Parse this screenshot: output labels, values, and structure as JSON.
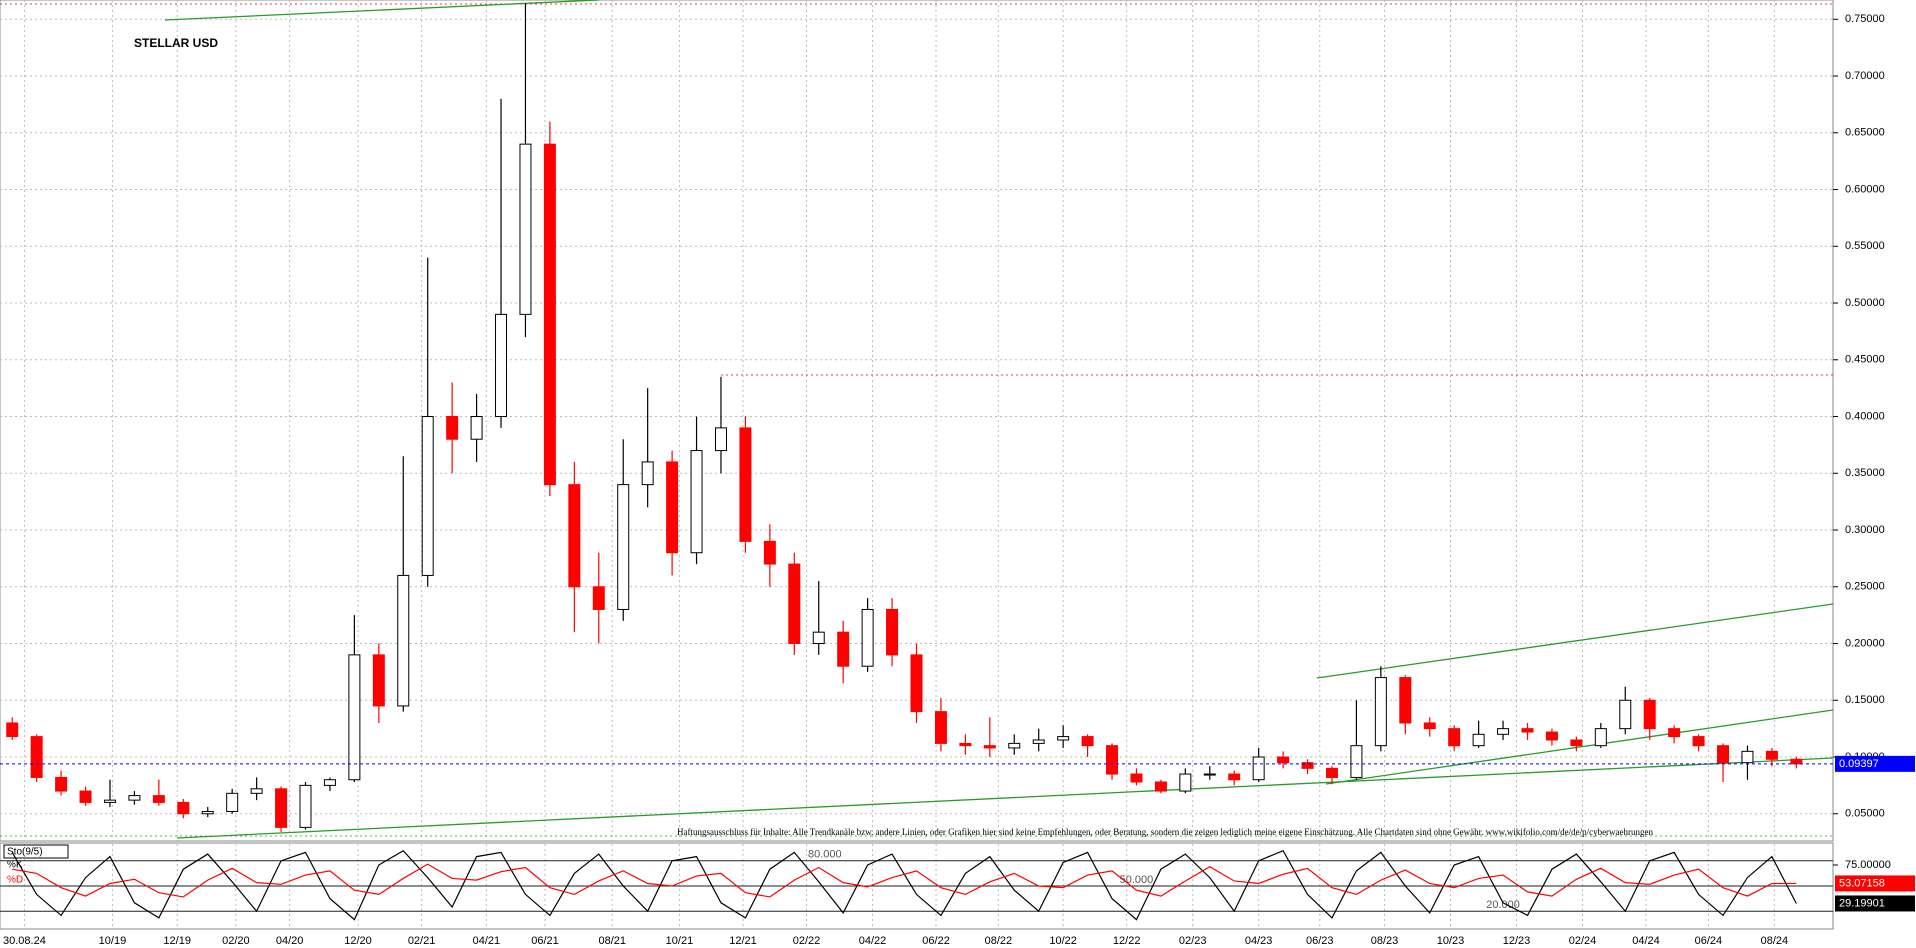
{
  "chart_data": [
    {
      "type": "candlestick",
      "title": "STELLAR USD",
      "note": "Haftungsausschluss für Inhalte: Alle Trendkanäle bzw. andere Linien, oder Grafiken hier sind keine Empfehlungen, oder Beratung, sondern die zeigen lediglich meine eigene Einschätzung. Alle Chartdaten sind ohne Gewähr. www.wikifolio.com/de/de/p/cyberwaehrungen",
      "open": [
        0.13,
        0.118,
        0.082,
        0.07,
        0.06,
        0.062,
        0.066,
        0.06,
        0.05,
        0.052,
        0.068,
        0.072,
        0.038,
        0.075,
        0.08,
        0.19,
        0.145,
        0.26,
        0.4,
        0.38,
        0.4,
        0.49,
        0.64,
        0.34,
        0.25,
        0.23,
        0.34,
        0.36,
        0.28,
        0.37,
        0.39,
        0.29,
        0.27,
        0.2,
        0.21,
        0.18,
        0.23,
        0.19,
        0.14,
        0.112,
        0.11,
        0.108,
        0.112,
        0.115,
        0.118,
        0.11,
        0.085,
        0.078,
        0.07,
        0.085,
        0.085,
        0.08,
        0.1,
        0.095,
        0.09,
        0.082,
        0.11,
        0.17,
        0.13,
        0.125,
        0.11,
        0.12,
        0.125,
        0.122,
        0.115,
        0.11,
        0.125,
        0.15,
        0.125,
        0.118,
        0.11,
        0.095,
        0.105,
        0.098
      ],
      "high": [
        0.135,
        0.12,
        0.088,
        0.074,
        0.08,
        0.07,
        0.08,
        0.063,
        0.056,
        0.072,
        0.082,
        0.074,
        0.078,
        0.082,
        0.225,
        0.2,
        0.365,
        0.54,
        0.43,
        0.42,
        0.68,
        0.764,
        0.66,
        0.36,
        0.28,
        0.38,
        0.425,
        0.37,
        0.4,
        0.435,
        0.4,
        0.305,
        0.28,
        0.255,
        0.22,
        0.24,
        0.24,
        0.2,
        0.152,
        0.12,
        0.135,
        0.12,
        0.125,
        0.128,
        0.12,
        0.112,
        0.09,
        0.08,
        0.09,
        0.092,
        0.088,
        0.108,
        0.105,
        0.098,
        0.092,
        0.15,
        0.18,
        0.172,
        0.135,
        0.128,
        0.132,
        0.132,
        0.13,
        0.125,
        0.118,
        0.13,
        0.162,
        0.152,
        0.128,
        0.12,
        0.112,
        0.11,
        0.108,
        0.1
      ],
      "low": [
        0.115,
        0.078,
        0.066,
        0.057,
        0.056,
        0.058,
        0.057,
        0.046,
        0.047,
        0.05,
        0.062,
        0.034,
        0.036,
        0.07,
        0.078,
        0.13,
        0.14,
        0.25,
        0.35,
        0.36,
        0.39,
        0.47,
        0.33,
        0.21,
        0.2,
        0.22,
        0.32,
        0.26,
        0.27,
        0.35,
        0.28,
        0.25,
        0.19,
        0.19,
        0.165,
        0.175,
        0.18,
        0.13,
        0.105,
        0.102,
        0.1,
        0.102,
        0.105,
        0.108,
        0.1,
        0.08,
        0.075,
        0.068,
        0.068,
        0.08,
        0.075,
        0.078,
        0.09,
        0.085,
        0.076,
        0.08,
        0.105,
        0.12,
        0.118,
        0.105,
        0.108,
        0.115,
        0.115,
        0.11,
        0.105,
        0.108,
        0.12,
        0.115,
        0.112,
        0.105,
        0.078,
        0.08,
        0.092,
        0.09
      ],
      "close": [
        0.118,
        0.082,
        0.07,
        0.06,
        0.062,
        0.066,
        0.06,
        0.05,
        0.052,
        0.068,
        0.072,
        0.038,
        0.075,
        0.08,
        0.19,
        0.145,
        0.26,
        0.4,
        0.38,
        0.4,
        0.49,
        0.64,
        0.34,
        0.25,
        0.23,
        0.34,
        0.36,
        0.28,
        0.37,
        0.39,
        0.29,
        0.27,
        0.2,
        0.21,
        0.18,
        0.23,
        0.19,
        0.14,
        0.112,
        0.11,
        0.108,
        0.112,
        0.115,
        0.118,
        0.11,
        0.085,
        0.078,
        0.07,
        0.085,
        0.085,
        0.08,
        0.1,
        0.095,
        0.09,
        0.082,
        0.11,
        0.17,
        0.13,
        0.125,
        0.11,
        0.12,
        0.125,
        0.122,
        0.115,
        0.11,
        0.125,
        0.15,
        0.125,
        0.118,
        0.11,
        0.095,
        0.105,
        0.098,
        0.09397
      ],
      "up_color": "#000000",
      "down_color": "#ff0000",
      "last_color": "#0000ff",
      "xlim": [
        -0.5,
        74.5
      ],
      "xticks": [
        {
          "value": 0.5,
          "label": "30.08.24"
        },
        {
          "value": 4.1,
          "label": "10/19"
        },
        {
          "value": 6.75,
          "label": "12/19"
        },
        {
          "value": 9.15,
          "label": "02/20"
        },
        {
          "value": 11.35,
          "label": "04/20"
        },
        {
          "value": 14.15,
          "label": "12/20"
        },
        {
          "value": 16.75,
          "label": "02/21"
        },
        {
          "value": 19.4,
          "label": "04/21"
        },
        {
          "value": 21.8,
          "label": "06/21"
        },
        {
          "value": 24.55,
          "label": "08/21"
        },
        {
          "value": 27.3,
          "label": "10/21"
        },
        {
          "value": 29.9,
          "label": "12/21"
        },
        {
          "value": 32.5,
          "label": "02/22"
        },
        {
          "value": 35.2,
          "label": "04/22"
        },
        {
          "value": 37.8,
          "label": "06/22"
        },
        {
          "value": 40.35,
          "label": "08/22"
        },
        {
          "value": 43,
          "label": "10/22"
        },
        {
          "value": 45.6,
          "label": "12/22"
        },
        {
          "value": 48.3,
          "label": "02/23"
        },
        {
          "value": 51,
          "label": "04/23"
        },
        {
          "value": 53.5,
          "label": "06/23"
        },
        {
          "value": 56.15,
          "label": "08/23"
        },
        {
          "value": 58.85,
          "label": "10/23"
        },
        {
          "value": 61.55,
          "label": "12/23"
        },
        {
          "value": 64.25,
          "label": "02/24"
        },
        {
          "value": 66.85,
          "label": "04/24"
        },
        {
          "value": 69.4,
          "label": "06/24"
        },
        {
          "value": 72.1,
          "label": "08/24"
        }
      ],
      "ylim": [
        0.026,
        0.767
      ],
      "yticks": [
        {
          "value": 0.05,
          "label": "0.05000"
        },
        {
          "value": 0.1,
          "label": "0.10000"
        },
        {
          "value": 0.15,
          "label": "0.15000"
        },
        {
          "value": 0.2,
          "label": "0.20000"
        },
        {
          "value": 0.25,
          "label": "0.25000"
        },
        {
          "value": 0.3,
          "label": "0.30000"
        },
        {
          "value": 0.35,
          "label": "0.35000"
        },
        {
          "value": 0.4,
          "label": "0.40000"
        },
        {
          "value": 0.45,
          "label": "0.45000"
        },
        {
          "value": 0.5,
          "label": "0.50000"
        },
        {
          "value": 0.55,
          "label": "0.55000"
        },
        {
          "value": 0.6,
          "label": "0.60000"
        },
        {
          "value": 0.65,
          "label": "0.65000"
        },
        {
          "value": 0.7,
          "label": "0.70000"
        },
        {
          "value": 0.75,
          "label": "0.75000"
        }
      ],
      "grid": true
    },
    {
      "type": "line",
      "title": "Sto(9/5)",
      "series": [
        {
          "name": "%K",
          "color": "#000000",
          "values": [
            90,
            40,
            15,
            60,
            85,
            30,
            12,
            70,
            88,
            55,
            20,
            80,
            90,
            35,
            10,
            75,
            92,
            60,
            25,
            85,
            90,
            40,
            15,
            65,
            88,
            50,
            20,
            80,
            85,
            30,
            12,
            70,
            90,
            55,
            18,
            75,
            88,
            40,
            15,
            65,
            85,
            45,
            20,
            78,
            90,
            35,
            10,
            70,
            88,
            60,
            20,
            80,
            92,
            40,
            12,
            68,
            90,
            50,
            18,
            75,
            85,
            30,
            15,
            70,
            88,
            55,
            20,
            80,
            90,
            40,
            15,
            60,
            85,
            29.19901
          ]
        },
        {
          "name": "%D",
          "color": "#ff0000",
          "values": [
            70,
            65,
            48,
            38,
            53,
            58,
            42,
            37,
            57,
            71,
            54,
            52,
            63,
            68,
            45,
            40,
            59,
            76,
            59,
            57,
            67,
            72,
            48,
            40,
            56,
            68,
            53,
            50,
            62,
            65,
            42,
            37,
            57,
            72,
            54,
            49,
            60,
            68,
            48,
            40,
            55,
            65,
            50,
            48,
            63,
            68,
            45,
            38,
            56,
            73,
            56,
            53,
            64,
            71,
            48,
            40,
            57,
            69,
            53,
            48,
            59,
            63,
            43,
            38,
            58,
            71,
            54,
            52,
            63,
            70,
            48,
            38,
            53,
            53.07158
          ]
        }
      ],
      "ylim": [
        0,
        100
      ],
      "yticks": [
        {
          "value": 75,
          "label": "75.00000"
        }
      ],
      "level_ticks": [
        {
          "value": 80,
          "label": "80.000"
        },
        {
          "value": 50,
          "label": "50.000"
        },
        {
          "value": 20,
          "label": "20.000"
        }
      ]
    }
  ]
}
